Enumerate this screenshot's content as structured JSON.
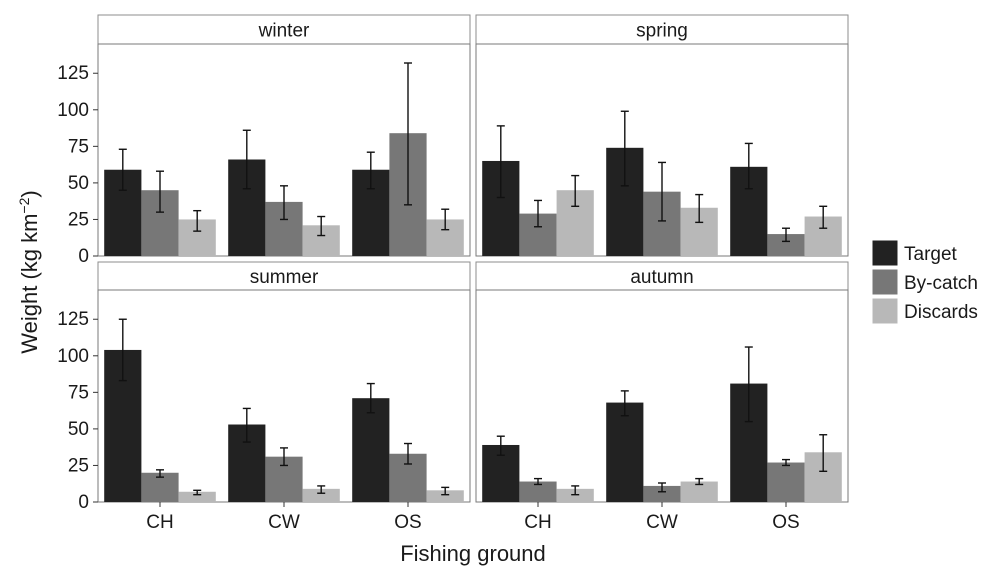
{
  "chart_data": {
    "type": "bar",
    "layout": "faceted 2x2 grouped bar chart with error bars",
    "xlabel": "Fishing ground",
    "ylabel": "Weight (kg km",
    "ylabel_superscript": "−2",
    "ylabel_close": ")",
    "categories": [
      "CH",
      "CW",
      "OS"
    ],
    "ylim": [
      0,
      145
    ],
    "yticks": [
      0,
      25,
      50,
      75,
      100,
      125
    ],
    "grid": false,
    "legend_position": "right",
    "series_names": [
      "Target",
      "By-catch",
      "Discards"
    ],
    "series_colors": [
      "#222222",
      "#777777",
      "#b8b8b8"
    ],
    "panels": [
      {
        "title": "winter",
        "series": [
          {
            "name": "Target",
            "values": [
              59,
              66,
              59
            ],
            "err_low": [
              45,
              46,
              46
            ],
            "err_high": [
              73,
              86,
              71
            ]
          },
          {
            "name": "By-catch",
            "values": [
              45,
              37,
              84
            ],
            "err_low": [
              30,
              25,
              35
            ],
            "err_high": [
              58,
              48,
              132
            ]
          },
          {
            "name": "Discards",
            "values": [
              25,
              21,
              25
            ],
            "err_low": [
              17,
              14,
              18
            ],
            "err_high": [
              31,
              27,
              32
            ]
          }
        ]
      },
      {
        "title": "spring",
        "series": [
          {
            "name": "Target",
            "values": [
              65,
              74,
              61
            ],
            "err_low": [
              40,
              48,
              46
            ],
            "err_high": [
              89,
              99,
              77
            ]
          },
          {
            "name": "By-catch",
            "values": [
              29,
              44,
              15
            ],
            "err_low": [
              20,
              24,
              10
            ],
            "err_high": [
              38,
              64,
              19
            ]
          },
          {
            "name": "Discards",
            "values": [
              45,
              33,
              27
            ],
            "err_low": [
              34,
              23,
              19
            ],
            "err_high": [
              55,
              42,
              34
            ]
          }
        ]
      },
      {
        "title": "summer",
        "series": [
          {
            "name": "Target",
            "values": [
              104,
              53,
              71
            ],
            "err_low": [
              83,
              41,
              61
            ],
            "err_high": [
              125,
              64,
              81
            ]
          },
          {
            "name": "By-catch",
            "values": [
              20,
              31,
              33
            ],
            "err_low": [
              17,
              25,
              26
            ],
            "err_high": [
              22,
              37,
              40
            ]
          },
          {
            "name": "Discards",
            "values": [
              7,
              9,
              8
            ],
            "err_low": [
              5,
              6,
              5
            ],
            "err_high": [
              8,
              11,
              10
            ]
          }
        ]
      },
      {
        "title": "autumn",
        "series": [
          {
            "name": "Target",
            "values": [
              39,
              68,
              81
            ],
            "err_low": [
              32,
              59,
              55
            ],
            "err_high": [
              45,
              76,
              106
            ]
          },
          {
            "name": "By-catch",
            "values": [
              14,
              11,
              27
            ],
            "err_low": [
              12,
              7,
              25
            ],
            "err_high": [
              16,
              13,
              29
            ]
          },
          {
            "name": "Discards",
            "values": [
              9,
              14,
              34
            ],
            "err_low": [
              5,
              12,
              21
            ],
            "err_high": [
              11,
              16,
              46
            ]
          }
        ]
      }
    ]
  }
}
